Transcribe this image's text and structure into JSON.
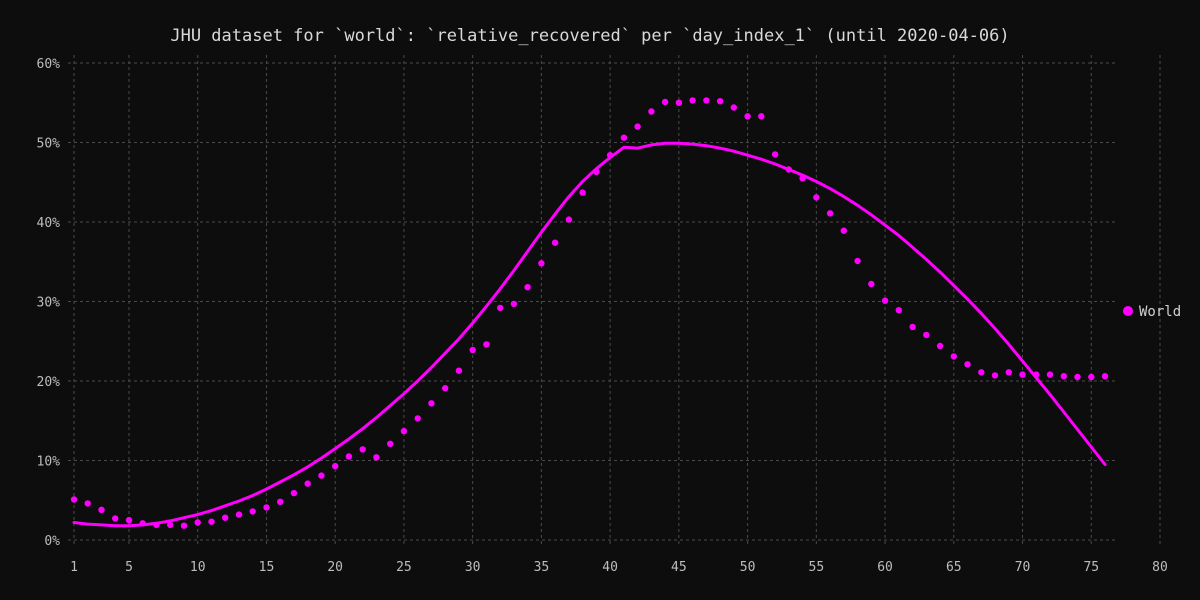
{
  "chart_data": {
    "type": "scatter",
    "title": "JHU dataset for `world`: `relative_recovered` per `day_index_1` (until 2020-04-06)",
    "xlabel": "",
    "ylabel": "",
    "xlim": [
      1,
      80
    ],
    "ylim": [
      0,
      0.6
    ],
    "x_ticks": [
      1,
      5,
      10,
      15,
      20,
      25,
      30,
      35,
      40,
      45,
      50,
      55,
      60,
      65,
      70,
      75,
      80
    ],
    "x_tick_labels": [
      "1",
      "5",
      "10",
      "15",
      "20",
      "25",
      "30",
      "35",
      "40",
      "45",
      "50",
      "55",
      "60",
      "65",
      "70",
      "75",
      "80"
    ],
    "y_ticks": [
      0,
      0.1,
      0.2,
      0.3,
      0.4,
      0.5,
      0.6
    ],
    "y_tick_labels": [
      "0%",
      "10%",
      "20%",
      "30%",
      "40%",
      "50%",
      "60%"
    ],
    "grid": true,
    "legend_position": "right",
    "color": "#ff00ff",
    "series": [
      {
        "name": "World",
        "type": "scatter",
        "x": [
          1,
          2,
          3,
          4,
          5,
          6,
          7,
          8,
          9,
          10,
          11,
          12,
          13,
          14,
          15,
          16,
          17,
          18,
          19,
          20,
          21,
          22,
          23,
          24,
          25,
          26,
          27,
          28,
          29,
          30,
          31,
          32,
          33,
          34,
          35,
          36,
          37,
          38,
          39,
          40,
          41,
          42,
          43,
          44,
          45,
          46,
          47,
          48,
          49,
          50,
          51,
          52,
          53,
          54,
          55,
          56,
          57,
          58,
          59,
          60,
          61,
          62,
          63,
          64,
          65,
          66,
          67,
          68,
          69,
          70,
          71,
          72,
          73,
          74,
          75,
          76
        ],
        "y": [
          0.051,
          0.046,
          0.038,
          0.027,
          0.025,
          0.021,
          0.019,
          0.019,
          0.018,
          0.022,
          0.023,
          0.028,
          0.032,
          0.036,
          0.041,
          0.048,
          0.059,
          0.071,
          0.081,
          0.093,
          0.105,
          0.114,
          0.104,
          0.121,
          0.137,
          0.153,
          0.172,
          0.191,
          0.213,
          0.239,
          0.246,
          0.292,
          0.297,
          0.318,
          0.348,
          0.374,
          0.403,
          0.437,
          0.463,
          0.484,
          0.506,
          0.52,
          0.539,
          0.551,
          0.55,
          0.553,
          0.553,
          0.552,
          0.544,
          0.533,
          0.533,
          0.485,
          0.466,
          0.455,
          0.431,
          0.411,
          0.389,
          0.351,
          0.322,
          0.301,
          0.289,
          0.268,
          0.258,
          0.244,
          0.231,
          0.221,
          0.211,
          0.207,
          0.211,
          0.208,
          0.208,
          0.208,
          0.206,
          0.205,
          0.205,
          0.206
        ]
      },
      {
        "type": "line",
        "x": [
          1,
          2,
          3,
          4,
          5,
          6,
          7,
          8,
          9,
          10,
          11,
          12,
          13,
          14,
          15,
          16,
          17,
          18,
          19,
          20,
          21,
          22,
          23,
          24,
          25,
          26,
          27,
          28,
          29,
          30,
          31,
          32,
          33,
          34,
          35,
          36,
          37,
          38,
          39,
          40,
          41,
          42,
          43,
          44,
          45,
          46,
          47,
          48,
          49,
          50,
          51,
          52,
          53,
          54,
          55,
          56,
          57,
          58,
          59,
          60,
          61,
          62,
          63,
          64,
          65,
          66,
          67,
          68,
          69,
          70,
          71,
          72,
          73,
          74,
          75,
          76
        ],
        "y": [
          0.022,
          0.02,
          0.019,
          0.018,
          0.018,
          0.019,
          0.021,
          0.024,
          0.028,
          0.032,
          0.037,
          0.043,
          0.049,
          0.056,
          0.064,
          0.073,
          0.082,
          0.092,
          0.103,
          0.115,
          0.127,
          0.14,
          0.154,
          0.169,
          0.184,
          0.2,
          0.217,
          0.235,
          0.253,
          0.273,
          0.294,
          0.316,
          0.339,
          0.363,
          0.387,
          0.41,
          0.432,
          0.451,
          0.467,
          0.481,
          0.494,
          0.493,
          0.497,
          0.499,
          0.499,
          0.498,
          0.496,
          0.493,
          0.489,
          0.484,
          0.479,
          0.473,
          0.466,
          0.459,
          0.451,
          0.442,
          0.432,
          0.421,
          0.409,
          0.396,
          0.383,
          0.368,
          0.353,
          0.337,
          0.32,
          0.303,
          0.285,
          0.266,
          0.246,
          0.225,
          0.204,
          0.183,
          0.161,
          0.139,
          0.117,
          0.095
        ]
      }
    ]
  }
}
